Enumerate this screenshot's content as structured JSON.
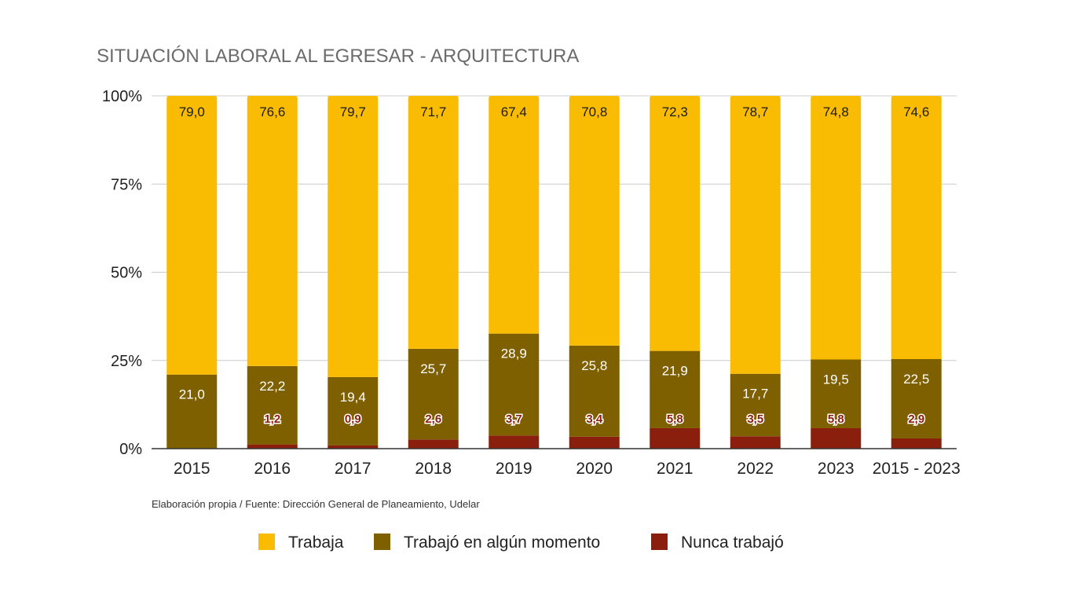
{
  "chart_data": {
    "type": "bar",
    "stacked": true,
    "title": "SITUACIÓN LABORAL AL EGRESAR - ARQUITECTURA",
    "xlabel": "",
    "ylabel": "",
    "ylim": [
      0,
      100
    ],
    "y_ticks": [
      "0%",
      "25%",
      "50%",
      "75%",
      "100%"
    ],
    "y_tick_values": [
      0,
      25,
      50,
      75,
      100
    ],
    "grid": true,
    "legend_position": "bottom",
    "categories": [
      "2015",
      "2016",
      "2017",
      "2018",
      "2019",
      "2020",
      "2021",
      "2022",
      "2023",
      "2015 - 2023"
    ],
    "series": [
      {
        "name": "Nunca trabajó",
        "color": "#8b1f0e",
        "values": [
          0,
          1.2,
          0.9,
          2.6,
          3.7,
          3.4,
          5.8,
          3.5,
          5.8,
          2.9
        ],
        "labels": [
          "",
          "1,2",
          "0,9",
          "2,6",
          "3,7",
          "3,4",
          "5,8",
          "3,5",
          "5,8",
          "2,9"
        ]
      },
      {
        "name": "Trabajó en algún momento",
        "color": "#7f6000",
        "values": [
          21.0,
          22.2,
          19.4,
          25.7,
          28.9,
          25.8,
          21.9,
          17.7,
          19.5,
          22.5
        ],
        "labels": [
          "21,0",
          "22,2",
          "19,4",
          "25,7",
          "28,9",
          "25,8",
          "21,9",
          "17,7",
          "19,5",
          "22,5"
        ]
      },
      {
        "name": "Trabaja",
        "color": "#f9bc02",
        "values": [
          79.0,
          76.6,
          79.7,
          71.7,
          67.4,
          70.8,
          72.3,
          78.7,
          74.8,
          74.6
        ],
        "labels": [
          "79,0",
          "76,6",
          "79,7",
          "71,7",
          "67,4",
          "70,8",
          "72,3",
          "78,7",
          "74,8",
          "74,6"
        ]
      }
    ],
    "source_note": "Elaboración propia / Fuente: Dirección General de Planeamiento, Udelar"
  }
}
